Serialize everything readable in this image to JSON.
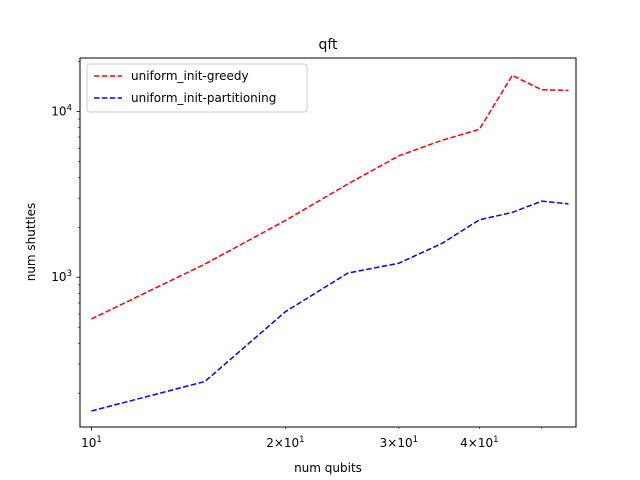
{
  "chart_data": {
    "type": "line",
    "title": "qft",
    "xlabel": "num qubits",
    "ylabel": "num shuttles",
    "xscale": "log",
    "yscale": "log",
    "xlim": [
      9.6,
      56.5
    ],
    "ylim": [
      125,
      21000
    ],
    "grid": false,
    "legend_placement": "top-left",
    "x_tick_labels": [
      {
        "value": 10,
        "base": "10",
        "exp": "1",
        "coef": ""
      },
      {
        "value": 20,
        "base": "10",
        "exp": "1",
        "coef": "2×"
      },
      {
        "value": 30,
        "base": "10",
        "exp": "1",
        "coef": "3×"
      },
      {
        "value": 40,
        "base": "10",
        "exp": "1",
        "coef": "4×"
      }
    ],
    "x_minor_ticks": [
      50
    ],
    "y_tick_labels": [
      {
        "value": 1000,
        "base": "10",
        "exp": "3"
      },
      {
        "value": 10000,
        "base": "10",
        "exp": "4"
      }
    ],
    "y_minor_ticks": [
      200,
      300,
      400,
      500,
      600,
      700,
      800,
      900,
      2000,
      3000,
      4000,
      5000,
      6000,
      7000,
      8000,
      9000,
      20000
    ],
    "series": [
      {
        "name": "uniform_init-greedy",
        "color": "#ff0000",
        "dash": "dashed",
        "x": [
          10,
          15,
          20,
          25,
          30,
          35,
          40,
          45,
          50,
          55
        ],
        "y": [
          560,
          1200,
          2200,
          3650,
          5400,
          6700,
          7800,
          16500,
          13500,
          13400
        ]
      },
      {
        "name": "uniform_init-partitioning",
        "color": "#0000ff",
        "dash": "dashed",
        "x": [
          10,
          15,
          20,
          25,
          30,
          35,
          40,
          45,
          50,
          55
        ],
        "y": [
          156,
          235,
          620,
          1060,
          1215,
          1600,
          2220,
          2460,
          2880,
          2770
        ]
      }
    ]
  }
}
